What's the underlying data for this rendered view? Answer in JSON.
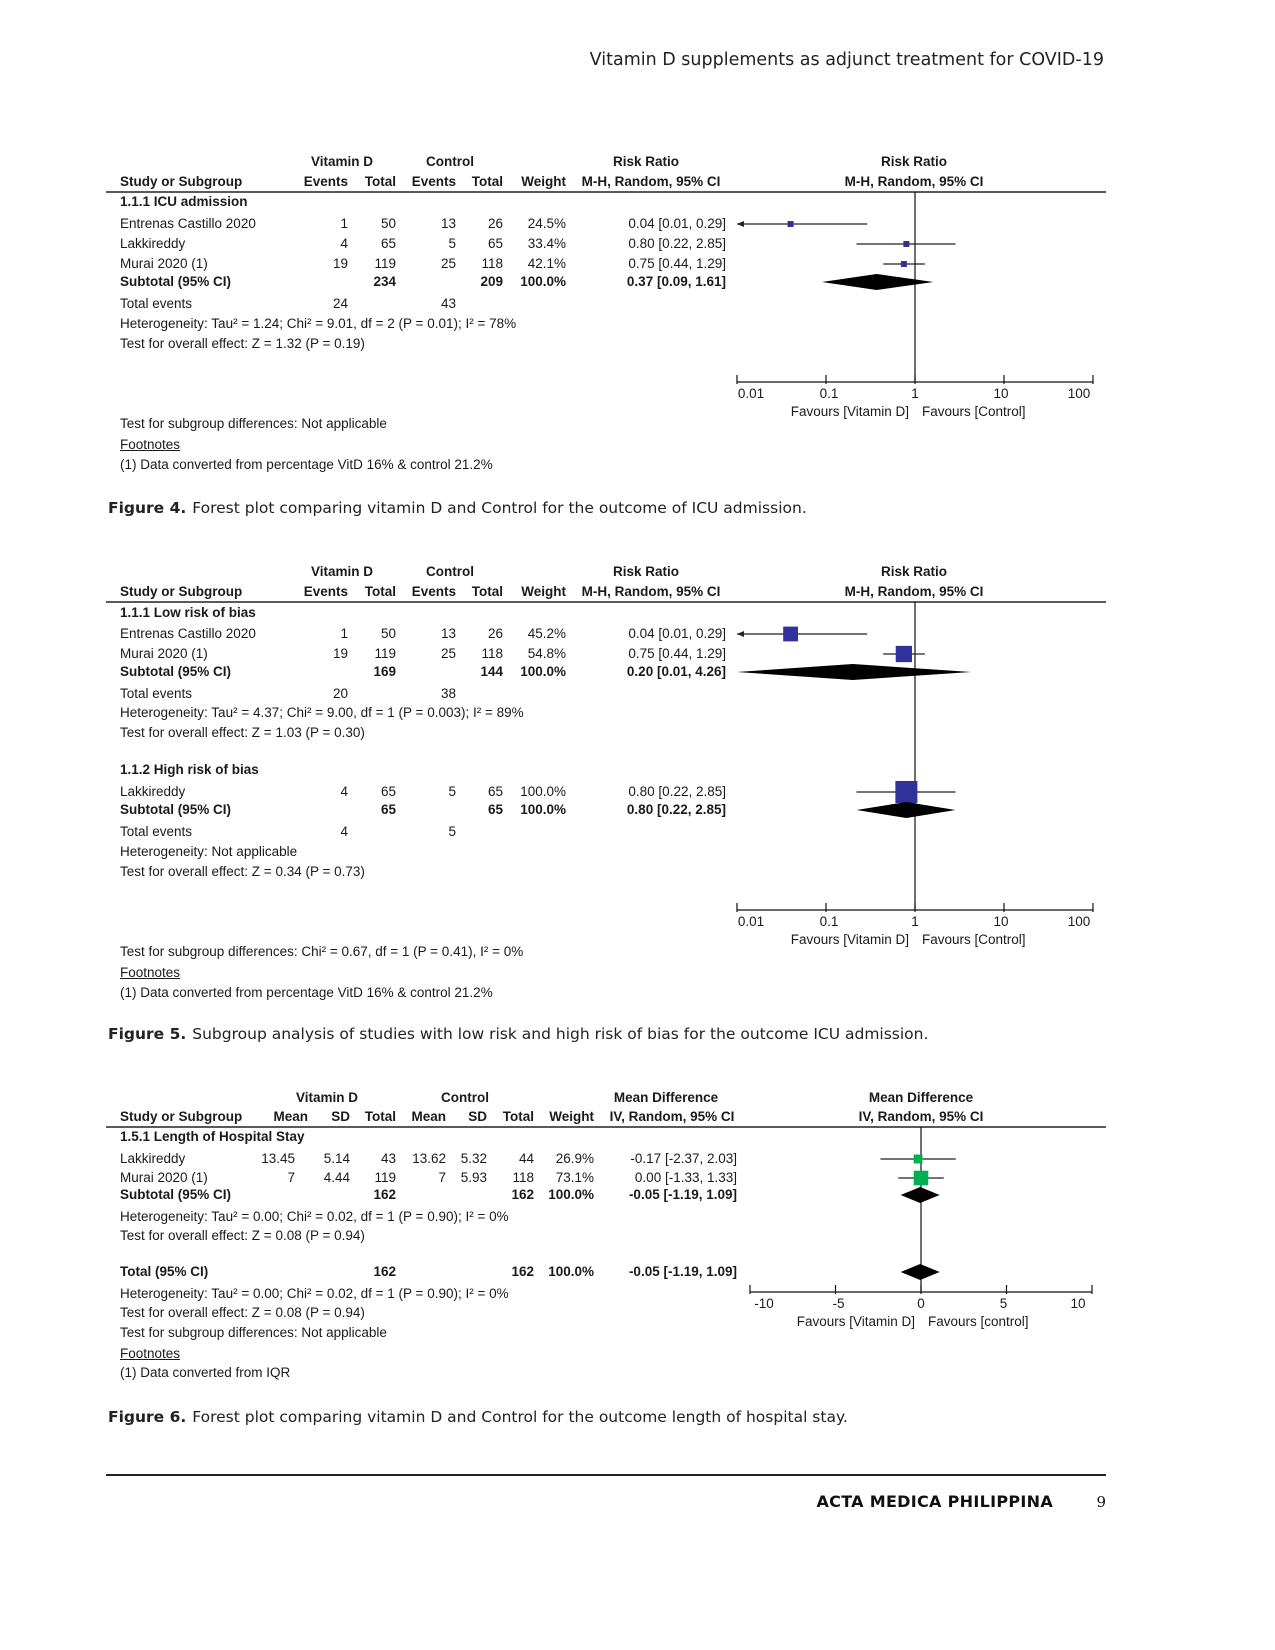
{
  "running_header": "Vitamin D supplements as adjunct treatment for COVID-19",
  "footer": {
    "journal": "ACTA MEDICA PHILIPPINA",
    "page": "9"
  },
  "colors": {
    "rr_square": "#31319c",
    "md_square": "#00b050",
    "diamond": "#000000"
  },
  "figures": [
    {
      "caption_label": "Figure 4.",
      "caption": "Forest plot comparing vitamin D and Control for the outcome of ICU admission.",
      "header_groups": [
        "Vitamin D",
        "Control",
        "Risk Ratio",
        "Risk Ratio"
      ],
      "header_cols": [
        "Study or Subgroup",
        "Events",
        "Total",
        "Events",
        "Total",
        "Weight",
        "M-H, Random, 95% CI",
        "M-H, Random, 95% CI"
      ],
      "rows": [
        {
          "kind": "heading",
          "cells": [
            "1.1.1 ICU admission"
          ]
        },
        {
          "kind": "study",
          "cells": [
            "Entrenas Castillo 2020",
            "1",
            "50",
            "13",
            "26",
            "24.5%",
            "0.04 [0.01, 0.29]"
          ],
          "est": 0.04,
          "lo": 0.01,
          "hi": 0.29,
          "weight": 24.5
        },
        {
          "kind": "study",
          "cells": [
            "Lakkireddy",
            "4",
            "65",
            "5",
            "65",
            "33.4%",
            "0.80 [0.22, 2.85]"
          ],
          "est": 0.8,
          "lo": 0.22,
          "hi": 2.85,
          "weight": 33.4
        },
        {
          "kind": "study",
          "cells": [
            "Murai 2020 (1)",
            "19",
            "119",
            "25",
            "118",
            "42.1%",
            "0.75 [0.44, 1.29]"
          ],
          "est": 0.75,
          "lo": 0.44,
          "hi": 1.29,
          "weight": 42.1
        },
        {
          "kind": "subtotal",
          "cells": [
            "Subtotal (95% CI)",
            "",
            "234",
            "",
            "209",
            "100.0%",
            "0.37 [0.09, 1.61]"
          ],
          "est": 0.37,
          "lo": 0.09,
          "hi": 1.61
        },
        {
          "kind": "events",
          "cells": [
            "Total events",
            "24",
            "",
            "43"
          ]
        },
        {
          "kind": "note",
          "cells": [
            "Heterogeneity: Tau² = 1.24; Chi² = 9.01, df = 2 (P = 0.01); I² = 78%"
          ]
        },
        {
          "kind": "note",
          "cells": [
            "Test for overall effect: Z = 1.32 (P = 0.19)"
          ]
        }
      ],
      "axis": {
        "scale": "log",
        "ticks": [
          "0.01",
          "0.1",
          "1",
          "10",
          "100"
        ],
        "tick_values": [
          0.01,
          0.1,
          1,
          10,
          100
        ],
        "favours_left": "Favours [Vitamin D]",
        "favours_right": "Favours [Control]"
      },
      "footer_lines": [
        "Test for subgroup differences: Not applicable",
        "Footnotes",
        "(1) Data converted from percentage VitD 16% & control 21.2%"
      ]
    },
    {
      "caption_label": "Figure 5.",
      "caption": "Subgroup analysis of studies with low risk and high risk of bias for the outcome ICU admission.",
      "header_groups": [
        "Vitamin D",
        "Control",
        "Risk Ratio",
        "Risk Ratio"
      ],
      "header_cols": [
        "Study or Subgroup",
        "Events",
        "Total",
        "Events",
        "Total",
        "Weight",
        "M-H, Random, 95% CI",
        "M-H, Random, 95% CI"
      ],
      "rows": [
        {
          "kind": "heading",
          "cells": [
            "1.1.1 Low risk of bias"
          ]
        },
        {
          "kind": "study",
          "cells": [
            "Entrenas Castillo 2020",
            "1",
            "50",
            "13",
            "26",
            "45.2%",
            "0.04 [0.01, 0.29]"
          ],
          "est": 0.04,
          "lo": 0.01,
          "hi": 0.29,
          "weight": 45.2
        },
        {
          "kind": "study",
          "cells": [
            "Murai 2020 (1)",
            "19",
            "119",
            "25",
            "118",
            "54.8%",
            "0.75 [0.44, 1.29]"
          ],
          "est": 0.75,
          "lo": 0.44,
          "hi": 1.29,
          "weight": 54.8
        },
        {
          "kind": "subtotal",
          "cells": [
            "Subtotal (95% CI)",
            "",
            "169",
            "",
            "144",
            "100.0%",
            "0.20 [0.01, 4.26]"
          ],
          "est": 0.2,
          "lo": 0.01,
          "hi": 4.26
        },
        {
          "kind": "events",
          "cells": [
            "Total events",
            "20",
            "",
            "38"
          ]
        },
        {
          "kind": "note",
          "cells": [
            "Heterogeneity: Tau² = 4.37; Chi² = 9.00, df = 1 (P = 0.003); I² = 89%"
          ]
        },
        {
          "kind": "note",
          "cells": [
            "Test for overall effect: Z = 1.03 (P = 0.30)"
          ]
        },
        {
          "kind": "heading",
          "cells": [
            "1.1.2 High risk of bias"
          ]
        },
        {
          "kind": "study",
          "cells": [
            "Lakkireddy",
            "4",
            "65",
            "5",
            "65",
            "100.0%",
            "0.80 [0.22, 2.85]"
          ],
          "est": 0.8,
          "lo": 0.22,
          "hi": 2.85,
          "weight": 100
        },
        {
          "kind": "subtotal",
          "cells": [
            "Subtotal (95% CI)",
            "",
            "65",
            "",
            "65",
            "100.0%",
            "0.80 [0.22, 2.85]"
          ],
          "est": 0.8,
          "lo": 0.22,
          "hi": 2.85
        },
        {
          "kind": "events",
          "cells": [
            "Total events",
            "4",
            "",
            "5"
          ]
        },
        {
          "kind": "note",
          "cells": [
            "Heterogeneity: Not applicable"
          ]
        },
        {
          "kind": "note",
          "cells": [
            "Test for overall effect: Z = 0.34 (P = 0.73)"
          ]
        }
      ],
      "axis": {
        "scale": "log",
        "ticks": [
          "0.01",
          "0.1",
          "1",
          "10",
          "100"
        ],
        "tick_values": [
          0.01,
          0.1,
          1,
          10,
          100
        ],
        "favours_left": "Favours [Vitamin D]",
        "favours_right": "Favours [Control]"
      },
      "footer_lines": [
        "Test for subgroup differences: Chi² = 0.67, df = 1 (P = 0.41), I² = 0%",
        "Footnotes",
        "(1) Data converted from percentage VitD 16% & control 21.2%"
      ]
    },
    {
      "caption_label": "Figure 6.",
      "caption": "Forest plot comparing vitamin D and Control for the outcome length of hospital stay.",
      "header_groups": [
        "Vitamin D",
        "Control",
        "Mean Difference",
        "Mean Difference"
      ],
      "header_cols": [
        "Study or Subgroup",
        "Mean",
        "SD",
        "Total",
        "Mean",
        "SD",
        "Total",
        "Weight",
        "IV, Random, 95% CI",
        "IV, Random, 95% CI"
      ],
      "rows": [
        {
          "kind": "heading",
          "cells": [
            "1.5.1 Length of Hospital Stay"
          ]
        },
        {
          "kind": "study",
          "cells": [
            "Lakkireddy",
            "13.45",
            "5.14",
            "43",
            "13.62",
            "5.32",
            "44",
            "26.9%",
            "-0.17 [-2.37, 2.03]"
          ],
          "est": -0.17,
          "lo": -2.37,
          "hi": 2.03,
          "weight": 26.9
        },
        {
          "kind": "study",
          "cells": [
            "Murai 2020 (1)",
            "7",
            "4.44",
            "119",
            "7",
            "5.93",
            "118",
            "73.1%",
            "0.00 [-1.33, 1.33]"
          ],
          "est": 0.0,
          "lo": -1.33,
          "hi": 1.33,
          "weight": 73.1
        },
        {
          "kind": "subtotal",
          "cells": [
            "Subtotal (95% CI)",
            "",
            "",
            "162",
            "",
            "",
            "162",
            "100.0%",
            "-0.05 [-1.19, 1.09]"
          ],
          "est": -0.05,
          "lo": -1.19,
          "hi": 1.09
        },
        {
          "kind": "note",
          "cells": [
            "Heterogeneity: Tau² = 0.00; Chi² = 0.02, df = 1 (P = 0.90); I² = 0%"
          ]
        },
        {
          "kind": "note",
          "cells": [
            "Test for overall effect: Z = 0.08 (P = 0.94)"
          ]
        },
        {
          "kind": "subtotal",
          "cells": [
            "Total (95% CI)",
            "",
            "",
            "162",
            "",
            "",
            "162",
            "100.0%",
            "-0.05 [-1.19, 1.09]"
          ],
          "est": -0.05,
          "lo": -1.19,
          "hi": 1.09
        },
        {
          "kind": "note",
          "cells": [
            "Heterogeneity: Tau² = 0.00; Chi² = 0.02, df = 1 (P = 0.90); I² = 0%"
          ]
        },
        {
          "kind": "note",
          "cells": [
            "Test for overall effect: Z = 0.08 (P = 0.94)"
          ]
        }
      ],
      "axis": {
        "scale": "linear",
        "ticks": [
          "-10",
          "-5",
          "0",
          "5",
          "10"
        ],
        "tick_values": [
          -10,
          -5,
          0,
          5,
          10
        ],
        "favours_left": "Favours [Vitamin D]",
        "favours_right": "Favours [control]"
      },
      "footer_lines": [
        "Test for subgroup differences: Not applicable",
        "Footnotes",
        "(1) Data converted from IQR"
      ]
    }
  ]
}
